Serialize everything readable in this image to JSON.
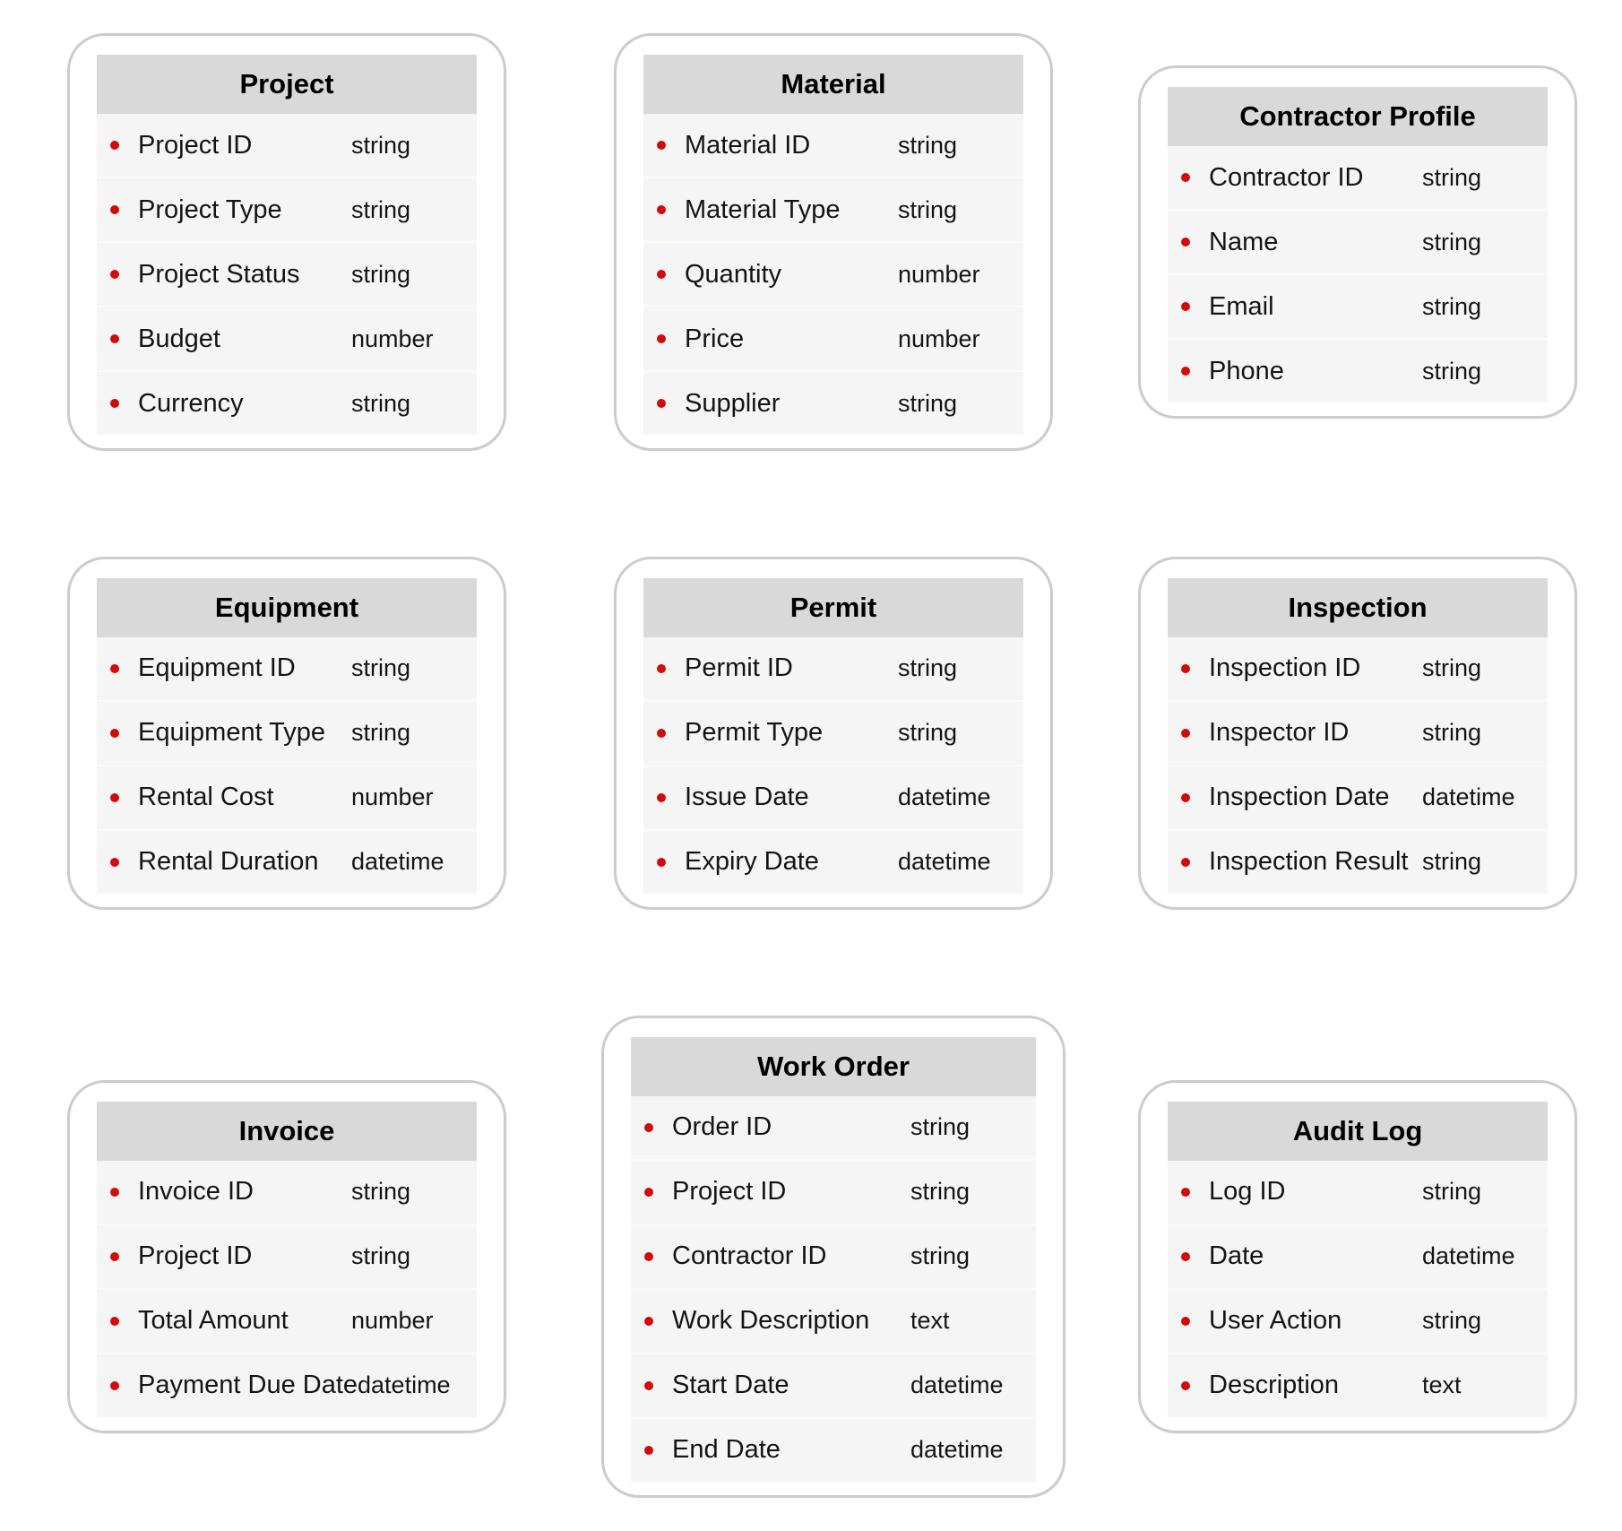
{
  "diagram": {
    "type": "entity-schema",
    "entities": [
      {
        "title": "Project",
        "grid_cell": "row-1-col-1",
        "fields": [
          {
            "name": "Project ID",
            "type": "string"
          },
          {
            "name": "Project Type",
            "type": "string"
          },
          {
            "name": "Project Status",
            "type": "string"
          },
          {
            "name": "Budget",
            "type": "number"
          },
          {
            "name": "Currency",
            "type": "string"
          }
        ]
      },
      {
        "title": "Material",
        "grid_cell": "row-1-col-2",
        "fields": [
          {
            "name": "Material ID",
            "type": "string"
          },
          {
            "name": "Material Type",
            "type": "string"
          },
          {
            "name": "Quantity",
            "type": "number"
          },
          {
            "name": "Price",
            "type": "number"
          },
          {
            "name": "Supplier",
            "type": "string"
          }
        ]
      },
      {
        "title": "Contractor Profile",
        "grid_cell": "row-1-col-3",
        "fields": [
          {
            "name": "Contractor ID",
            "type": "string"
          },
          {
            "name": "Name",
            "type": "string"
          },
          {
            "name": "Email",
            "type": "string"
          },
          {
            "name": "Phone",
            "type": "string"
          }
        ]
      },
      {
        "title": "Equipment",
        "grid_cell": "row-2-col-1",
        "fields": [
          {
            "name": "Equipment ID",
            "type": "string"
          },
          {
            "name": "Equipment Type",
            "type": "string"
          },
          {
            "name": "Rental Cost",
            "type": "number"
          },
          {
            "name": "Rental Duration",
            "type": "datetime"
          }
        ]
      },
      {
        "title": "Permit",
        "grid_cell": "row-2-col-2",
        "fields": [
          {
            "name": "Permit ID",
            "type": "string"
          },
          {
            "name": "Permit Type",
            "type": "string"
          },
          {
            "name": "Issue Date",
            "type": "datetime"
          },
          {
            "name": "Expiry Date",
            "type": "datetime"
          }
        ]
      },
      {
        "title": "Inspection",
        "grid_cell": "row-2-col-3",
        "fields": [
          {
            "name": "Inspection ID",
            "type": "string"
          },
          {
            "name": "Inspector ID",
            "type": "string"
          },
          {
            "name": "Inspection Date",
            "type": "datetime"
          },
          {
            "name": "Inspection Result",
            "type": "string"
          }
        ]
      },
      {
        "title": "Invoice",
        "grid_cell": "row-3-col-1",
        "fields": [
          {
            "name": "Invoice ID",
            "type": "string"
          },
          {
            "name": "Project ID",
            "type": "string"
          },
          {
            "name": "Total Amount",
            "type": "number"
          },
          {
            "name": "Payment Due Date",
            "type": "datetime"
          }
        ]
      },
      {
        "title": "Work Order",
        "grid_cell": "row-3-col-2",
        "wide": true,
        "fields": [
          {
            "name": "Order ID",
            "type": "string"
          },
          {
            "name": "Project ID",
            "type": "string"
          },
          {
            "name": "Contractor ID",
            "type": "string"
          },
          {
            "name": "Work Description",
            "type": "text"
          },
          {
            "name": "Start Date",
            "type": "datetime"
          },
          {
            "name": "End Date",
            "type": "datetime"
          }
        ]
      },
      {
        "title": "Audit Log",
        "grid_cell": "row-3-col-3",
        "fields": [
          {
            "name": "Log ID",
            "type": "string"
          },
          {
            "name": "Date",
            "type": "datetime"
          },
          {
            "name": "User Action",
            "type": "string"
          },
          {
            "name": "Description",
            "type": "text"
          }
        ]
      }
    ]
  },
  "colors": {
    "header_background": "#d9d9d9",
    "row_background": "#f5f5f5",
    "row_separator": "#fafafa",
    "bullet_red": "#d20a0a",
    "card_border": "#cccccc",
    "canvas_background": "#ffffff",
    "text": "#141414"
  }
}
